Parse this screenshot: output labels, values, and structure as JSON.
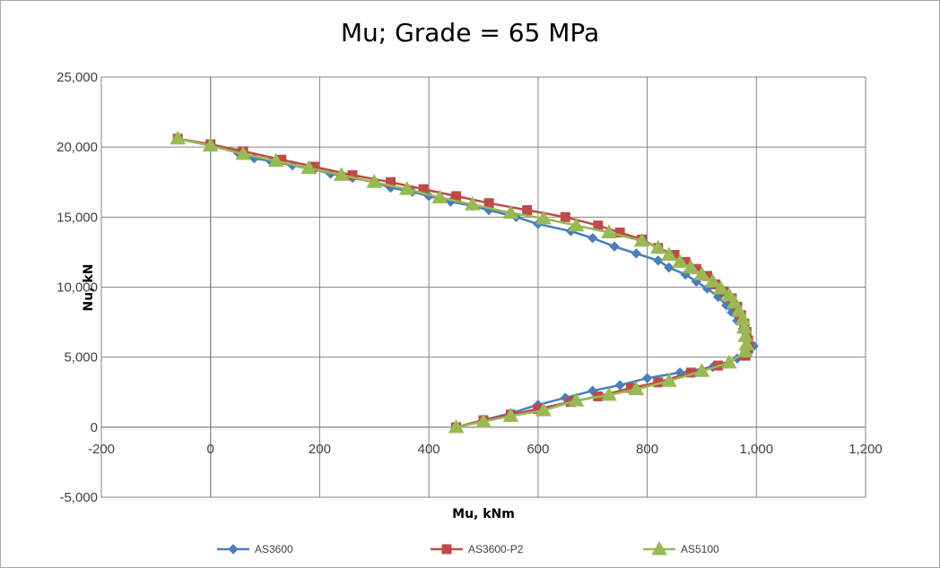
{
  "chart_data": {
    "type": "line",
    "title": "Mu; Grade = 65 MPa",
    "xlabel": "Mu, kNm",
    "ylabel": "Nu, kN",
    "xlim": [
      -200,
      1200
    ],
    "ylim": [
      -5000,
      25000
    ],
    "x_ticks": [
      -200,
      0,
      200,
      400,
      600,
      800,
      1000,
      1200
    ],
    "y_ticks": [
      -5000,
      0,
      5000,
      10000,
      15000,
      20000,
      25000
    ],
    "x_tick_labels": [
      "-200",
      "0",
      "200",
      "400",
      "600",
      "800",
      "1,000",
      "1,200"
    ],
    "y_tick_labels": [
      "-5,000",
      "0",
      "5,000",
      "10,000",
      "15,000",
      "20,000",
      "25,000"
    ],
    "grid": true,
    "legend_position": "bottom",
    "series": [
      {
        "name": "AS3600",
        "color": "#4a7ebb",
        "marker": "diamond",
        "points": [
          [
            -60,
            20600
          ],
          [
            0,
            20100
          ],
          [
            50,
            19600
          ],
          [
            80,
            19200
          ],
          [
            110,
            19000
          ],
          [
            150,
            18700
          ],
          [
            190,
            18400
          ],
          [
            220,
            18100
          ],
          [
            260,
            17800
          ],
          [
            300,
            17500
          ],
          [
            330,
            17100
          ],
          [
            370,
            16800
          ],
          [
            400,
            16500
          ],
          [
            440,
            16100
          ],
          [
            480,
            15800
          ],
          [
            510,
            15500
          ],
          [
            560,
            15000
          ],
          [
            600,
            14500
          ],
          [
            660,
            14000
          ],
          [
            700,
            13500
          ],
          [
            740,
            12900
          ],
          [
            780,
            12400
          ],
          [
            820,
            11900
          ],
          [
            840,
            11400
          ],
          [
            870,
            10900
          ],
          [
            890,
            10400
          ],
          [
            910,
            9900
          ],
          [
            930,
            9300
          ],
          [
            945,
            8700
          ],
          [
            955,
            8200
          ],
          [
            965,
            7600
          ],
          [
            975,
            7000
          ],
          [
            985,
            6400
          ],
          [
            995,
            5800
          ],
          [
            965,
            4900
          ],
          [
            920,
            4300
          ],
          [
            860,
            3900
          ],
          [
            800,
            3500
          ],
          [
            750,
            3000
          ],
          [
            700,
            2600
          ],
          [
            650,
            2100
          ],
          [
            600,
            1600
          ],
          [
            550,
            1000
          ],
          [
            500,
            500
          ],
          [
            450,
            0
          ]
        ]
      },
      {
        "name": "AS3600-P2",
        "color": "#be4b48",
        "marker": "square",
        "points": [
          [
            -60,
            20600
          ],
          [
            0,
            20200
          ],
          [
            60,
            19700
          ],
          [
            130,
            19100
          ],
          [
            190,
            18600
          ],
          [
            260,
            18000
          ],
          [
            330,
            17500
          ],
          [
            390,
            17000
          ],
          [
            450,
            16500
          ],
          [
            510,
            16000
          ],
          [
            580,
            15500
          ],
          [
            650,
            15000
          ],
          [
            710,
            14400
          ],
          [
            750,
            13900
          ],
          [
            790,
            13400
          ],
          [
            820,
            12800
          ],
          [
            850,
            12300
          ],
          [
            870,
            11800
          ],
          [
            890,
            11300
          ],
          [
            910,
            10800
          ],
          [
            925,
            10200
          ],
          [
            940,
            9700
          ],
          [
            955,
            9200
          ],
          [
            965,
            8600
          ],
          [
            972,
            8000
          ],
          [
            978,
            7400
          ],
          [
            982,
            6800
          ],
          [
            985,
            6200
          ],
          [
            985,
            5600
          ],
          [
            980,
            5100
          ],
          [
            930,
            4400
          ],
          [
            880,
            3900
          ],
          [
            820,
            3200
          ],
          [
            770,
            2800
          ],
          [
            710,
            2200
          ],
          [
            660,
            1800
          ],
          [
            600,
            1300
          ],
          [
            550,
            900
          ],
          [
            500,
            500
          ],
          [
            450,
            0
          ]
        ]
      },
      {
        "name": "AS5100",
        "color": "#98b954",
        "marker": "triangle",
        "points": [
          [
            -60,
            20600
          ],
          [
            0,
            20100
          ],
          [
            60,
            19500
          ],
          [
            120,
            19000
          ],
          [
            180,
            18500
          ],
          [
            240,
            18000
          ],
          [
            300,
            17500
          ],
          [
            360,
            17000
          ],
          [
            420,
            16400
          ],
          [
            480,
            15900
          ],
          [
            550,
            15300
          ],
          [
            610,
            14900
          ],
          [
            670,
            14400
          ],
          [
            730,
            13900
          ],
          [
            790,
            13300
          ],
          [
            820,
            12800
          ],
          [
            840,
            12300
          ],
          [
            860,
            11800
          ],
          [
            880,
            11400
          ],
          [
            900,
            10900
          ],
          [
            920,
            10400
          ],
          [
            935,
            9900
          ],
          [
            950,
            9400
          ],
          [
            960,
            8900
          ],
          [
            968,
            8300
          ],
          [
            975,
            7700
          ],
          [
            978,
            7100
          ],
          [
            980,
            6500
          ],
          [
            982,
            5900
          ],
          [
            980,
            5400
          ],
          [
            950,
            4600
          ],
          [
            900,
            4000
          ],
          [
            840,
            3300
          ],
          [
            780,
            2700
          ],
          [
            730,
            2300
          ],
          [
            670,
            1900
          ],
          [
            610,
            1200
          ],
          [
            550,
            800
          ],
          [
            500,
            400
          ],
          [
            450,
            0
          ]
        ]
      }
    ]
  }
}
